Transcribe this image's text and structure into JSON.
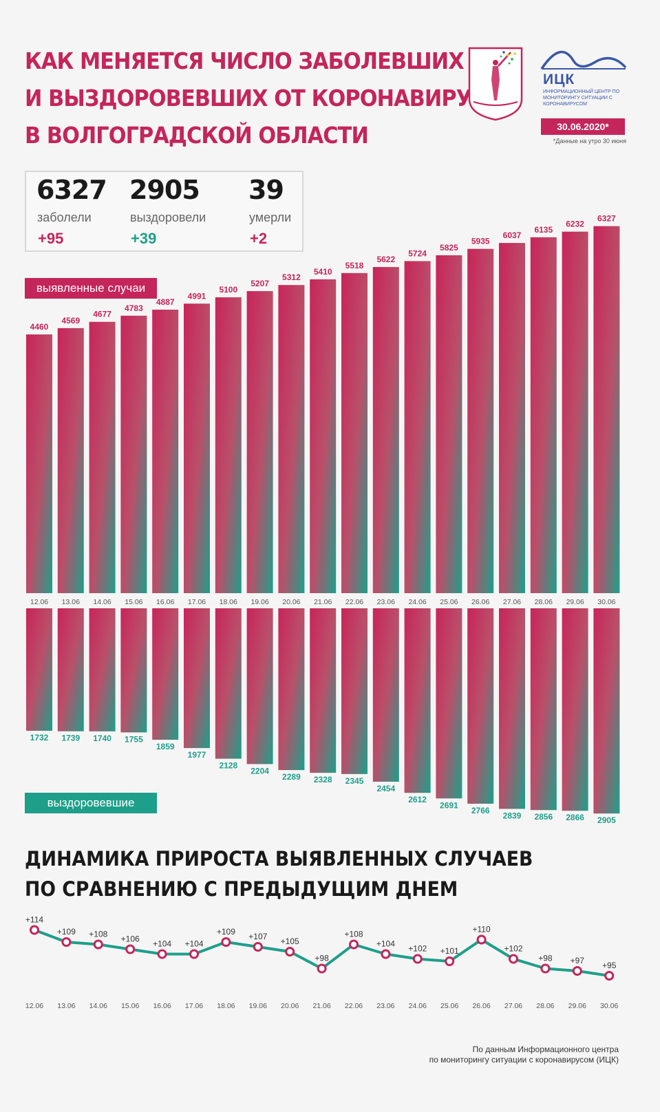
{
  "header": {
    "title_lines": [
      "Как меняется число заболевших",
      "и выздоровевших от коронавируса",
      "в Волгоградской области"
    ],
    "logo_name": "ИЦК",
    "logo_subtitle": "Информационный центр по мониторингу ситуации с коронавирусом",
    "date": "30.06.2020*",
    "date_note": "*Данные на утро 30 июня"
  },
  "stats": [
    {
      "value": "6327",
      "label": "заболели",
      "delta": "+95"
    },
    {
      "value": "2905",
      "label": "выздоровели",
      "delta": "+39"
    },
    {
      "value": "39",
      "label": "умерли",
      "delta": "+2"
    }
  ],
  "labels": {
    "cases": "выявленные случаи",
    "recovered": "выздоровевшие"
  },
  "subtitle_lines": [
    "Динамика прироста выявленных случаев",
    "по сравнению с предыдущим днем"
  ],
  "source_lines": [
    "По данным Информационного центра",
    "по мониторингу ситуации с коронавирусом (ИЦК)"
  ],
  "colors": {
    "accent": "#c4255a",
    "green": "#1e9f8a"
  },
  "chart_data": [
    {
      "type": "bar",
      "categories": [
        "12.06",
        "13.06",
        "14.06",
        "15.06",
        "16.06",
        "17.06",
        "18.06",
        "19.06",
        "20.06",
        "21.06",
        "22.06",
        "23.06",
        "24.06",
        "25.06",
        "26.06",
        "27.06",
        "28.06",
        "29.06",
        "30.06"
      ],
      "series": [
        {
          "name": "выявленные случаи",
          "values": [
            4460,
            4569,
            4677,
            4783,
            4887,
            4991,
            5100,
            5207,
            5312,
            5410,
            5518,
            5622,
            5724,
            5825,
            5935,
            6037,
            6135,
            6232,
            6327
          ]
        },
        {
          "name": "выздоровевшие",
          "values": [
            1732,
            1739,
            1740,
            1755,
            1859,
            1977,
            2128,
            2204,
            2289,
            2328,
            2345,
            2454,
            2612,
            2691,
            2766,
            2839,
            2856,
            2866,
            2905
          ]
        }
      ]
    },
    {
      "type": "line",
      "title": "Динамика прироста выявленных случаев по сравнению с предыдущим днем",
      "categories": [
        "12.06",
        "13.06",
        "14.06",
        "15.06",
        "16.06",
        "17.06",
        "18.06",
        "19.06",
        "20.06",
        "21.06",
        "22.06",
        "23.06",
        "24.06",
        "25.06",
        "26.06",
        "27.06",
        "28.06",
        "29.06",
        "30.06"
      ],
      "values": [
        114,
        109,
        108,
        106,
        104,
        104,
        109,
        107,
        105,
        98,
        108,
        104,
        102,
        101,
        110,
        102,
        98,
        97,
        95
      ]
    }
  ]
}
